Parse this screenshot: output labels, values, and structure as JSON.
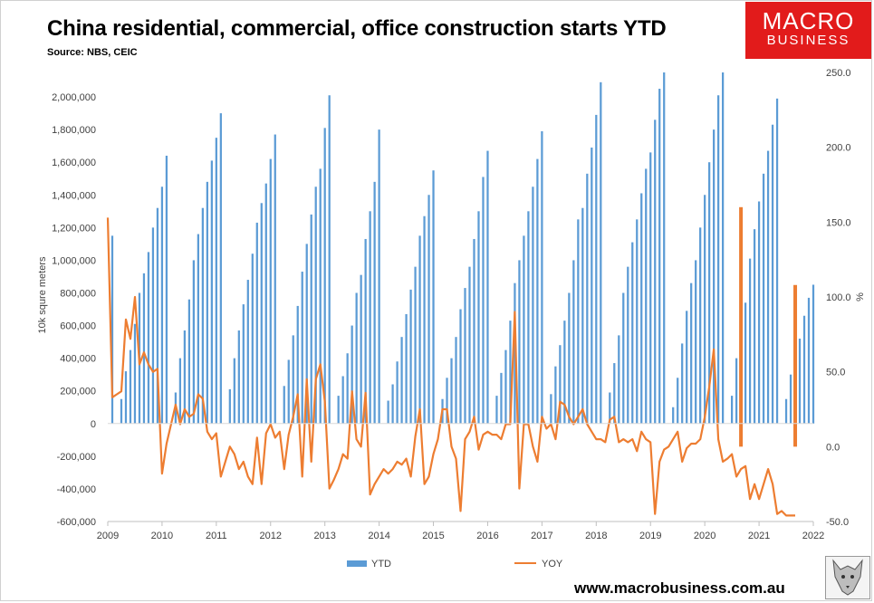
{
  "chart_data": {
    "type": "bar+line",
    "title": "China residential, commercial, office construction starts YTD",
    "subtitle": "Source: NBS, CEIC",
    "ylabel_left": "10k squre meters",
    "ylabel_right": "%",
    "ylim_left": [
      -600000,
      2100000
    ],
    "ylim_right": [
      -50,
      250
    ],
    "yticks_left": [
      "2,000,000",
      "1,800,000",
      "1,600,000",
      "1,400,000",
      "1,200,000",
      "1,000,000",
      "800,000",
      "600,000",
      "400,000",
      "200,000",
      "0",
      "-200,000",
      "-400,000",
      "-600,000"
    ],
    "yticks_right": [
      "250.0",
      "200.0",
      "150.0",
      "100.0",
      "50.0",
      "0.0",
      "-50.0"
    ],
    "xticks": [
      "2009",
      "2010",
      "2011",
      "2012",
      "2013",
      "2014",
      "2015",
      "2016",
      "2017",
      "2018",
      "2019",
      "2020",
      "2021",
      "2022"
    ],
    "colors": {
      "ytd": "#5b9bd5",
      "yoy": "#ed7d31"
    },
    "series": [
      {
        "name": "YTD",
        "type": "bar",
        "start": "2009-02",
        "values": [
          1150000,
          0,
          150000,
          320000,
          450000,
          610000,
          800000,
          920000,
          1050000,
          1200000,
          1320000,
          1450000,
          1640000,
          0,
          190000,
          400000,
          570000,
          760000,
          1000000,
          1160000,
          1320000,
          1480000,
          1610000,
          1750000,
          1900000,
          0,
          210000,
          400000,
          570000,
          730000,
          880000,
          1040000,
          1230000,
          1350000,
          1470000,
          1620000,
          1770000,
          0,
          230000,
          390000,
          540000,
          720000,
          930000,
          1100000,
          1280000,
          1450000,
          1560000,
          1810000,
          2010000,
          0,
          170000,
          290000,
          430000,
          600000,
          800000,
          910000,
          1130000,
          1300000,
          1480000,
          1800000,
          0,
          140000,
          240000,
          380000,
          530000,
          670000,
          820000,
          960000,
          1150000,
          1270000,
          1400000,
          1550000,
          0,
          150000,
          280000,
          400000,
          530000,
          700000,
          830000,
          960000,
          1130000,
          1300000,
          1510000,
          1670000,
          0,
          170000,
          310000,
          450000,
          630000,
          860000,
          1000000,
          1150000,
          1300000,
          1450000,
          1620000,
          1790000,
          0,
          180000,
          350000,
          480000,
          630000,
          800000,
          1000000,
          1250000,
          1320000,
          1530000,
          1690000,
          1890000,
          2090000,
          0,
          190000,
          370000,
          540000,
          800000,
          960000,
          1110000,
          1250000,
          1410000,
          1560000,
          1660000,
          1860000,
          2050000,
          2150000,
          0,
          100000,
          280000,
          490000,
          690000,
          860000,
          1000000,
          1200000,
          1400000,
          1600000,
          1800000,
          2010000,
          2150000,
          0,
          170000,
          400000,
          550000,
          740000,
          1010000,
          1190000,
          1360000,
          1530000,
          1670000,
          1830000,
          1990000,
          0,
          150000,
          300000,
          400000,
          520000,
          660000,
          770000,
          850000
        ]
      },
      {
        "name": "YOY",
        "type": "line",
        "start": "2009-01",
        "values": [
          153,
          33,
          35,
          37,
          85,
          72,
          100,
          55,
          63,
          55,
          50,
          52,
          -18,
          2,
          15,
          28,
          15,
          25,
          20,
          22,
          35,
          32,
          10,
          5,
          9,
          -20,
          -10,
          0,
          -5,
          -15,
          -10,
          -20,
          -25,
          6,
          -25,
          9,
          15,
          6,
          10,
          -15,
          8,
          20,
          35,
          -20,
          45,
          -10,
          45,
          55,
          30,
          -28,
          -22,
          -15,
          -5,
          -8,
          37,
          5,
          0,
          36,
          -32,
          -25,
          -20,
          -15,
          -18,
          -15,
          -10,
          -12,
          -8,
          -20,
          7,
          25,
          -25,
          -20,
          -5,
          5,
          25,
          25,
          0,
          -8,
          -43,
          5,
          10,
          20,
          -2,
          8,
          10,
          8,
          8,
          5,
          15,
          15,
          90,
          -28,
          15,
          15,
          0,
          -10,
          20,
          12,
          15,
          5,
          30,
          28,
          20,
          15,
          20,
          25,
          15,
          10,
          5,
          5,
          3,
          18,
          20,
          3,
          5,
          3,
          5,
          -3,
          10,
          5,
          3,
          -45,
          -10,
          -2,
          0,
          5,
          10,
          -10,
          -1,
          2,
          2,
          5,
          20,
          40,
          65,
          5,
          -10,
          -8,
          -5,
          -20,
          -15,
          -13,
          -35,
          -25,
          -35,
          -25,
          -15,
          -25,
          -45,
          -43,
          -46,
          -46,
          -46
        ]
      }
    ],
    "highlight_bars": [
      {
        "series": "YOY",
        "date": "2020-09",
        "value": 160
      },
      {
        "series": "YOY",
        "date": "2021-09",
        "value": 108
      }
    ],
    "legend": [
      "YTD",
      "YOY"
    ],
    "legend_position": "bottom"
  },
  "branding": {
    "logo_line1": "MACRO",
    "logo_line2": "BUSINESS",
    "website": "www.macrobusiness.com.au"
  }
}
